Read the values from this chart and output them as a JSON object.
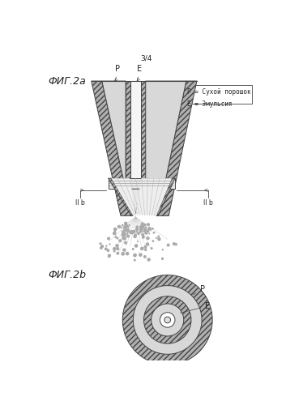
{
  "page_label": "3/4",
  "fig2a_label": "ФИГ.2а",
  "fig2b_label": "ФИГ.2b",
  "legend_text": "P = Сухой порошок\nE = Эмульсия",
  "label_P": "P",
  "label_E": "E",
  "label_IIb_left": "II b",
  "label_IIb_right": "II b",
  "bg_color": "#ffffff",
  "line_color": "#444444",
  "text_color": "#222222",
  "hatch_gray": "#b0b0b0",
  "channel_gray": "#d8d8d8",
  "inner_white": "#f5f5f5"
}
